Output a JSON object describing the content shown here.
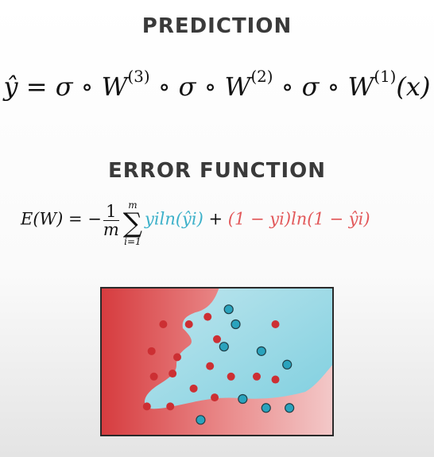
{
  "headings": {
    "prediction": "PREDICTION",
    "error_function": "ERROR FUNCTION"
  },
  "prediction_formula": {
    "lhs": "ŷ",
    "eq": "=",
    "sigma": "σ",
    "compose": "∘",
    "w": "W",
    "w3_sup": "(3)",
    "w2_sup": "(2)",
    "w1_sup": "(1)",
    "arg": "(x)"
  },
  "error_formula": {
    "lhs": "E(W) = −",
    "frac_num": "1",
    "frac_den": "m",
    "sum_upper": "m",
    "sum_symbol": "∑",
    "sum_lower": "i=1",
    "term1": "yiln(ŷi)",
    "plus": " + ",
    "term2": "(1 − yi)ln(1 − ŷi)"
  },
  "colors": {
    "positive": "#3bb0c9",
    "negative": "#e2585a",
    "red_points": "#cc2f33",
    "blue_points": "#2aa3bd"
  },
  "plot": {
    "red_points": [
      [
        0.27,
        0.25
      ],
      [
        0.46,
        0.2
      ],
      [
        0.38,
        0.25
      ],
      [
        0.22,
        0.43
      ],
      [
        0.5,
        0.35
      ],
      [
        0.33,
        0.47
      ],
      [
        0.31,
        0.58
      ],
      [
        0.47,
        0.53
      ],
      [
        0.23,
        0.6
      ],
      [
        0.56,
        0.6
      ],
      [
        0.67,
        0.6
      ],
      [
        0.75,
        0.62
      ],
      [
        0.4,
        0.68
      ],
      [
        0.49,
        0.74
      ],
      [
        0.3,
        0.8
      ],
      [
        0.2,
        0.8
      ],
      [
        0.75,
        0.25
      ]
    ],
    "blue_points": [
      [
        0.55,
        0.15
      ],
      [
        0.58,
        0.25
      ],
      [
        0.53,
        0.4
      ],
      [
        0.69,
        0.43
      ],
      [
        0.8,
        0.52
      ],
      [
        0.61,
        0.75
      ],
      [
        0.71,
        0.81
      ],
      [
        0.81,
        0.81
      ],
      [
        0.43,
        0.89
      ]
    ]
  }
}
